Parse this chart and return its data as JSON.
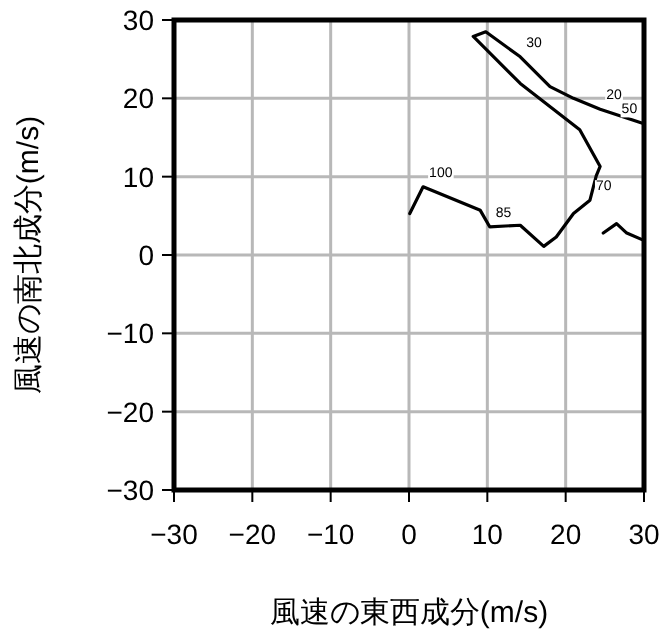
{
  "chart_data": {
    "type": "line",
    "xlabel": "風速の東西成分(m/s)",
    "ylabel": "風速の南北成分(m/s)",
    "xlim": [
      -30,
      30
    ],
    "ylim": [
      -30,
      30
    ],
    "xticks": [
      {
        "value": -30,
        "label": "−30"
      },
      {
        "value": -20,
        "label": "−20"
      },
      {
        "value": -10,
        "label": "−10"
      },
      0,
      10,
      20,
      30
    ],
    "yticks": [
      {
        "value": -30,
        "label": "−30"
      },
      {
        "value": -20,
        "label": "−20"
      },
      {
        "value": -10,
        "label": "−10"
      },
      0,
      10,
      20,
      30
    ],
    "grid": true,
    "marker": "none",
    "line_style": "solid",
    "series": [
      {
        "color": "#000000",
        "x": [
          0.1,
          1.8,
          9.1,
          10.3,
          14.2,
          17.2,
          18.8,
          21.0,
          23.1,
          23.9,
          24.4,
          21.8,
          14.2,
          8.2,
          9.8,
          14.2,
          18.0,
          21.0,
          24.4,
          29.9
        ],
        "values": [
          5.3,
          8.7,
          5.7,
          3.6,
          3.8,
          1.1,
          2.3,
          5.3,
          7.0,
          10.1,
          11.3,
          16.0,
          21.9,
          27.9,
          28.5,
          25.3,
          21.5,
          20.0,
          18.6,
          16.8
        ]
      },
      {
        "color": "#000000",
        "x": [
          24.8,
          26.5,
          27.8,
          29.9
        ],
        "values": [
          2.8,
          4.0,
          2.8,
          1.9
        ]
      }
    ],
    "annotations": [
      {
        "text": "100",
        "x": 1.8,
        "y": 8.7
      },
      {
        "text": "85",
        "x": 10.3,
        "y": 3.6
      },
      {
        "text": "70",
        "x": 23.1,
        "y": 7.0
      },
      {
        "text": "50",
        "x": 29.9,
        "y": 16.8
      },
      {
        "text": "30",
        "x": 14.2,
        "y": 25.3
      },
      {
        "text": "20",
        "x": 24.4,
        "y": 18.6
      }
    ]
  }
}
